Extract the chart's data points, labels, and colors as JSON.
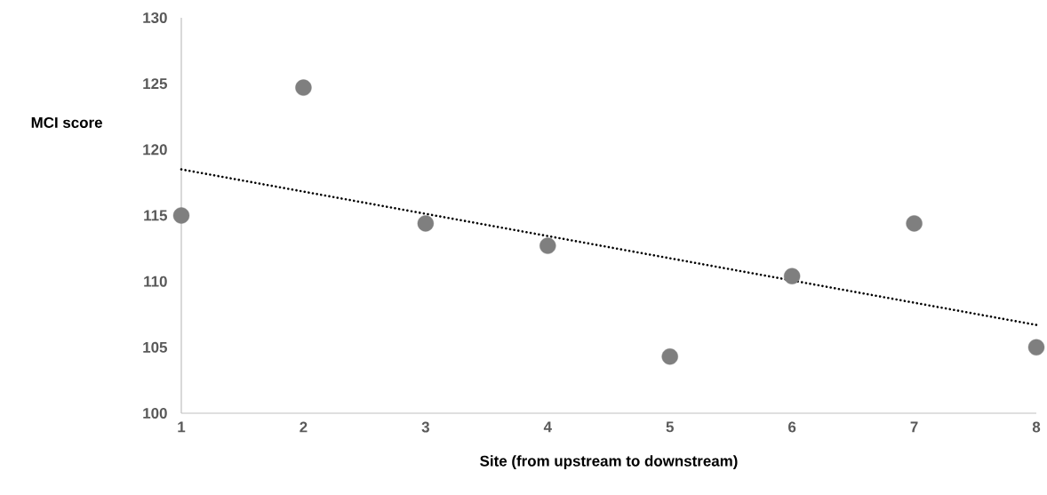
{
  "chart_data": {
    "type": "scatter",
    "xlabel": "Site (from upstream to downstream)",
    "ylabel": "MCI score",
    "xlim": [
      1,
      8
    ],
    "xticks": [
      1,
      2,
      3,
      4,
      5,
      6,
      7,
      8
    ],
    "ylim": [
      100,
      130
    ],
    "yticks": [
      100,
      105,
      110,
      115,
      120,
      125,
      130
    ],
    "grid": false,
    "legend": false,
    "series": [
      {
        "type": "scatter",
        "color": "#7f7f7f",
        "marker": "circle",
        "x": [
          1,
          2,
          3,
          4,
          5,
          6,
          7,
          8
        ],
        "values": [
          115.0,
          124.7,
          114.4,
          112.7,
          104.3,
          110.4,
          114.4,
          105.0
        ]
      },
      {
        "type": "line",
        "color": "#000000",
        "marker": "none",
        "line_style": "dotted",
        "x": [
          1,
          8
        ],
        "values": [
          118.5,
          106.7
        ]
      }
    ]
  }
}
